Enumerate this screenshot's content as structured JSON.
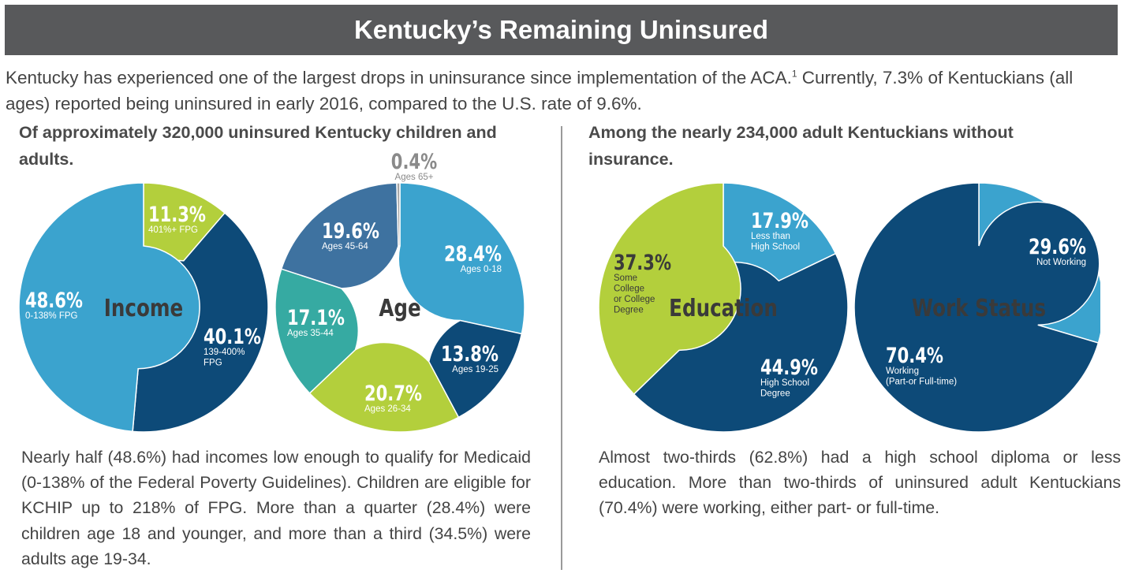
{
  "header": {
    "title": "Kentucky’s Remaining Uninsured"
  },
  "intro": {
    "text_before": "Kentucky has experienced one of the largest drops in uninsurance since implementation of the ACA.",
    "footnote": "1",
    "text_after": " Currently, 7.3% of Kentuckians (all ages) reported being uninsured in early 2016, compared to the U.S. rate of 9.6%."
  },
  "left_panel": {
    "heading": "Of approximately 320,000 uninsured Kentucky children and adults.",
    "body": "Nearly half (48.6%) had incomes low enough to qualify for Medicaid (0-138% of the Federal Poverty Guidelines). Children are eligible for KCHIP up to 218% of FPG. More than a quarter (28.4%) were children age 18 and younger, and more than a third (34.5%) were adults age 19-34."
  },
  "right_panel": {
    "heading": "Among the nearly 234,000 adult Kentuckians without insurance.",
    "body": "Almost two-thirds (62.8%) had a high school diploma or less education. More than two-thirds of uninsured adult Kentuckians (70.4%) were working, either part- or full-time."
  },
  "colors": {
    "light_blue": "#3ba3ce",
    "dark_blue": "#0d4a78",
    "lime": "#b3cf3c",
    "teal": "#36aaa2",
    "slate_blue": "#3e72a0",
    "grey": "#a6a6a6",
    "title_bar": "#58595b"
  },
  "chart_data": [
    {
      "type": "pie",
      "center_label": "Income",
      "slices": [
        {
          "value": 11.3,
          "label": "11.3%",
          "sublabel": "401%+ FPG",
          "color": "#b3cf3c"
        },
        {
          "value": 40.1,
          "label": "40.1%",
          "sublabel": "139-400% FPG",
          "color": "#0d4a78"
        },
        {
          "value": 48.6,
          "label": "48.6%",
          "sublabel": "0-138% FPG",
          "color": "#3ba3ce"
        }
      ]
    },
    {
      "type": "pie",
      "center_label": "Age",
      "slices": [
        {
          "value": 28.4,
          "label": "28.4%",
          "sublabel": "Ages 0-18",
          "color": "#3ba3ce"
        },
        {
          "value": 13.8,
          "label": "13.8%",
          "sublabel": "Ages 19-25",
          "color": "#0d4a78"
        },
        {
          "value": 20.7,
          "label": "20.7%",
          "sublabel": "Ages 26-34",
          "color": "#b3cf3c"
        },
        {
          "value": 17.1,
          "label": "17.1%",
          "sublabel": "Ages 35-44",
          "color": "#36aaa2"
        },
        {
          "value": 19.6,
          "label": "19.6%",
          "sublabel": "Ages 45-64",
          "color": "#3e72a0"
        },
        {
          "value": 0.4,
          "label": "0.4%",
          "sublabel": "Ages 65+",
          "color": "#a6a6a6"
        }
      ]
    },
    {
      "type": "pie",
      "center_label": "Education",
      "slices": [
        {
          "value": 17.9,
          "label": "17.9%",
          "sublabel": "Less than High School",
          "color": "#3ba3ce"
        },
        {
          "value": 44.9,
          "label": "44.9%",
          "sublabel": "High School Degree",
          "color": "#0d4a78"
        },
        {
          "value": 37.3,
          "label": "37.3%",
          "sublabel": "Some College or College Degree",
          "color": "#b3cf3c"
        }
      ]
    },
    {
      "type": "pie",
      "center_label": "Work Status",
      "slices": [
        {
          "value": 29.6,
          "label": "29.6%",
          "sublabel": "Not Working",
          "color": "#3ba3ce"
        },
        {
          "value": 70.4,
          "label": "70.4%",
          "sublabel": "Working (Part-or Full-time)",
          "color": "#0d4a78"
        }
      ]
    }
  ]
}
